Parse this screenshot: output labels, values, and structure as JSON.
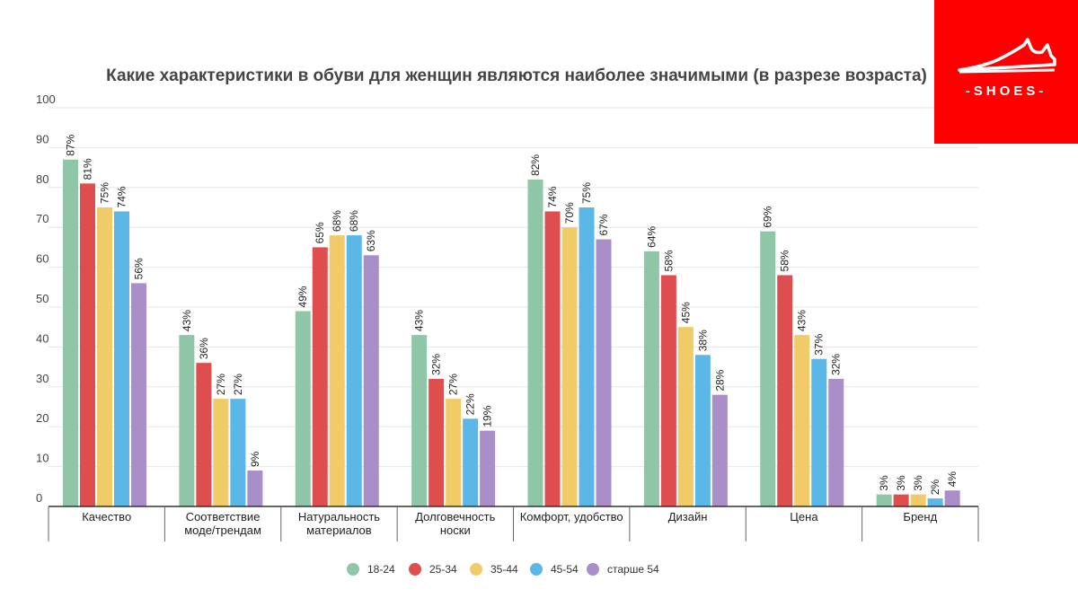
{
  "brand": {
    "logo_text": "-SHOES-",
    "logo_color": "#ff0000"
  },
  "chart_data": {
    "type": "bar",
    "title": "Какие характеристики в обуви для женщин являются наиболее значимыми (в разрезе возраста)",
    "categories": [
      [
        "Качество"
      ],
      [
        "Соответствие",
        "моде/трендам"
      ],
      [
        "Натуральность",
        "материалов"
      ],
      [
        "Долговечность",
        "носки"
      ],
      [
        "Комфорт, удобство"
      ],
      [
        "Дизайн"
      ],
      [
        "Цена"
      ],
      [
        "Бренд"
      ]
    ],
    "series": [
      {
        "name": "18-24",
        "color": "#8fc6a8",
        "values": [
          87,
          43,
          49,
          43,
          82,
          64,
          69,
          3
        ]
      },
      {
        "name": "25-34",
        "color": "#df4e4f",
        "values": [
          81,
          36,
          65,
          32,
          74,
          58,
          58,
          3
        ]
      },
      {
        "name": "35-44",
        "color": "#f0cb67",
        "values": [
          75,
          27,
          68,
          27,
          70,
          45,
          43,
          3
        ]
      },
      {
        "name": "45-54",
        "color": "#5bb7e8",
        "values": [
          74,
          27,
          68,
          22,
          75,
          38,
          37,
          2
        ]
      },
      {
        "name": "старше 54",
        "color": "#a98ec7",
        "values": [
          56,
          9,
          63,
          19,
          67,
          28,
          32,
          4
        ]
      }
    ],
    "ylim": [
      0,
      100
    ],
    "yticks": [
      "0",
      "10",
      "20",
      "30",
      "40",
      "50",
      "60",
      "70",
      "80",
      "90",
      "100"
    ],
    "value_suffix": "%",
    "grid": true,
    "legend": "bottom-center"
  }
}
